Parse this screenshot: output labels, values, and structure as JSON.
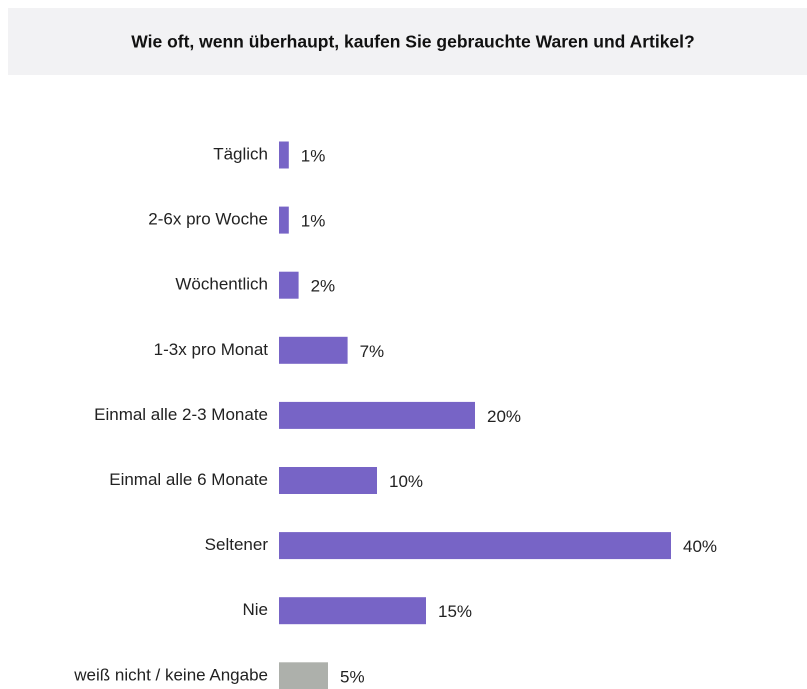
{
  "chart_data": {
    "type": "bar",
    "orientation": "horizontal",
    "title": "Wie oft, wenn überhaupt, kaufen Sie gebrauchte Waren und Artikel?",
    "categories": [
      "Täglich",
      "2-6x pro Woche",
      "Wöchentlich",
      "1-3x pro Monat",
      "Einmal alle 2-3 Monate",
      "Einmal alle 6 Monate",
      "Seltener",
      "Nie",
      "weiß nicht / keine Angabe"
    ],
    "values": [
      1,
      1,
      2,
      7,
      20,
      10,
      40,
      15,
      5
    ],
    "value_labels": [
      "1%",
      "1%",
      "2%",
      "7%",
      "20%",
      "10%",
      "40%",
      "15%",
      "5%"
    ],
    "colors": [
      "#7764c6",
      "#7764c6",
      "#7764c6",
      "#7764c6",
      "#7764c6",
      "#7764c6",
      "#7764c6",
      "#7764c6",
      "#adb0ab"
    ]
  }
}
